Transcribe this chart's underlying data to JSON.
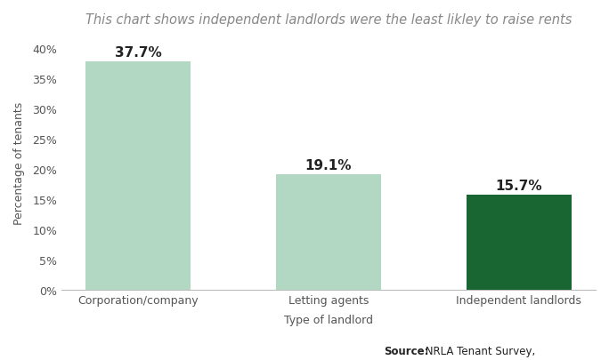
{
  "categories": [
    "Corporation/company",
    "Letting agents",
    "Independent landlords"
  ],
  "values": [
    37.7,
    19.1,
    15.7
  ],
  "bar_colors": [
    "#b2d8c4",
    "#b2d8c4",
    "#1a6632"
  ],
  "value_labels": [
    "37.7%",
    "19.1%",
    "15.7%"
  ],
  "title": "This chart shows independent landlords were the least likley to raise rents",
  "xlabel": "Type of landlord",
  "ylabel": "Percentage of tenants",
  "ylim": [
    0,
    42
  ],
  "yticks": [
    0,
    5,
    10,
    15,
    20,
    25,
    30,
    35,
    40
  ],
  "ytick_labels": [
    "0%",
    "5%",
    "10%",
    "15%",
    "20%",
    "25%",
    "30%",
    "35%",
    "40%"
  ],
  "background_color": "#ffffff",
  "title_fontsize": 10.5,
  "label_fontsize": 9,
  "value_fontsize": 11,
  "axis_fontsize": 9,
  "bar_width": 0.55
}
